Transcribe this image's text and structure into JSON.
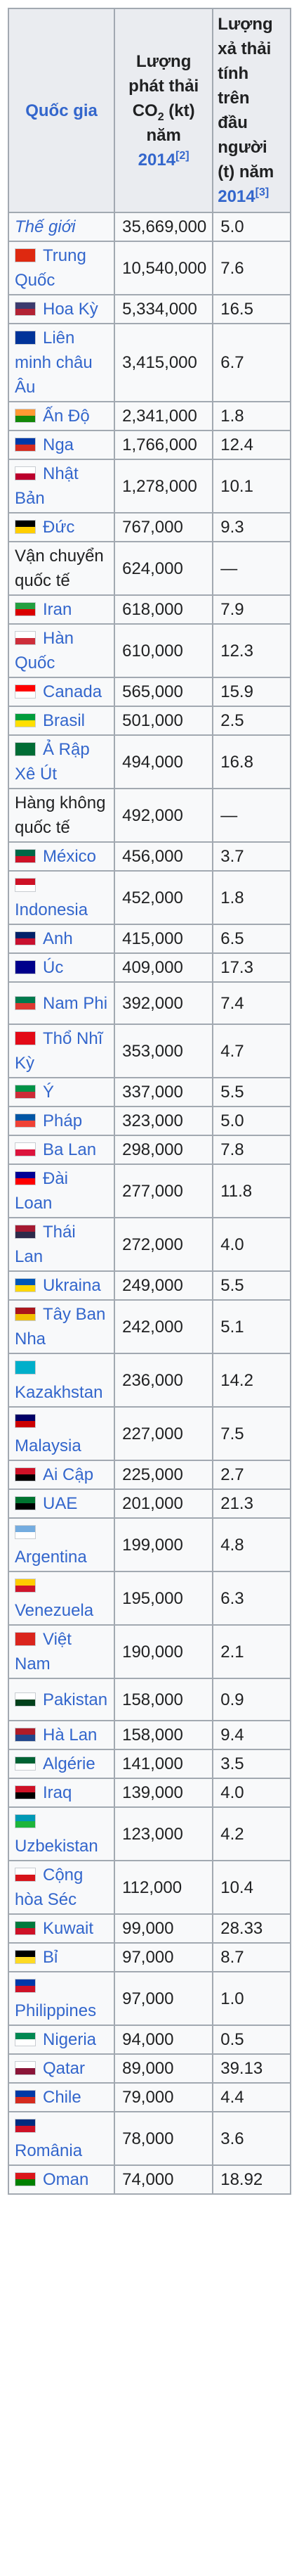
{
  "header": {
    "country": "Quốc gia",
    "total_line1": "Lượng",
    "total_line2": "phát thải",
    "total_co2": "CO",
    "total_co2_sub": "2",
    "total_unit": " (kt)",
    "total_line4": "năm",
    "total_year": "2014",
    "total_ref": "[2]",
    "percap_line1": "Lượng",
    "percap_line2": "xả thải",
    "percap_line3": "tính",
    "percap_line4": "trên",
    "percap_line5": "đầu",
    "percap_line6": "người",
    "percap_line7": "(t) năm",
    "percap_year": "2014",
    "percap_ref": "[3]"
  },
  "rows": [
    {
      "name": "Thế giới",
      "total": "35,669,000",
      "per": "5.0",
      "style": "italic-link",
      "flag": null
    },
    {
      "name": "Trung Quốc",
      "total": "10,540,000",
      "per": "7.6",
      "style": "link",
      "flag": "flag-china-icon",
      "colors": [
        "#de2910",
        "#de2910"
      ]
    },
    {
      "name": "Hoa Kỳ",
      "total": "5,334,000",
      "per": "16.5",
      "style": "link",
      "flag": "flag-usa-icon",
      "colors": [
        "#3c3b6e",
        "#b22234"
      ]
    },
    {
      "name": "Liên minh châu Âu",
      "total": "3,415,000",
      "per": "6.7",
      "style": "link",
      "flag": "flag-eu-icon",
      "colors": [
        "#003399",
        "#003399"
      ]
    },
    {
      "name": "Ấn Độ",
      "total": "2,341,000",
      "per": "1.8",
      "style": "link",
      "flag": "flag-india-icon",
      "colors": [
        "#ff9933",
        "#138808"
      ]
    },
    {
      "name": "Nga",
      "total": "1,766,000",
      "per": "12.4",
      "style": "link",
      "flag": "flag-russia-icon",
      "colors": [
        "#0039a6",
        "#d52b1e"
      ]
    },
    {
      "name": "Nhật Bản",
      "total": "1,278,000",
      "per": "10.1",
      "style": "link",
      "flag": "flag-japan-icon",
      "colors": [
        "#ffffff",
        "#bc002d"
      ]
    },
    {
      "name": "Đức",
      "total": "767,000",
      "per": "9.3",
      "style": "link",
      "flag": "flag-germany-icon",
      "colors": [
        "#000000",
        "#ffce00"
      ]
    },
    {
      "name": "Vận chuyển quốc tế",
      "total": "624,000",
      "per": "—",
      "style": "plain",
      "flag": null
    },
    {
      "name": "Iran",
      "total": "618,000",
      "per": "7.9",
      "style": "link",
      "flag": "flag-iran-icon",
      "colors": [
        "#239f40",
        "#da0000"
      ]
    },
    {
      "name": "Hàn Quốc",
      "total": "610,000",
      "per": "12.3",
      "style": "link",
      "flag": "flag-south-korea-icon",
      "colors": [
        "#ffffff",
        "#cd2e3a"
      ]
    },
    {
      "name": "Canada",
      "total": "565,000",
      "per": "15.9",
      "style": "link",
      "flag": "flag-canada-icon",
      "colors": [
        "#ff0000",
        "#ffffff"
      ]
    },
    {
      "name": "Brasil",
      "total": "501,000",
      "per": "2.5",
      "style": "link",
      "flag": "flag-brazil-icon",
      "colors": [
        "#009c3b",
        "#ffdf00"
      ]
    },
    {
      "name": "Ả Rập Xê Út",
      "total": "494,000",
      "per": "16.8",
      "style": "link",
      "flag": "flag-saudi-arabia-icon",
      "colors": [
        "#006c35",
        "#006c35"
      ]
    },
    {
      "name": "Hàng không quốc tế",
      "total": "492,000",
      "per": "—",
      "style": "plain",
      "flag": null
    },
    {
      "name": "México",
      "total": "456,000",
      "per": "3.7",
      "style": "link",
      "flag": "flag-mexico-icon",
      "colors": [
        "#006847",
        "#ce1126"
      ]
    },
    {
      "name": "Indonesia",
      "total": "452,000",
      "per": "1.8",
      "style": "link",
      "flag": "flag-indonesia-icon",
      "colors": [
        "#ce1126",
        "#ffffff"
      ]
    },
    {
      "name": "Anh",
      "total": "415,000",
      "per": "6.5",
      "style": "link",
      "flag": "flag-uk-icon",
      "colors": [
        "#012169",
        "#c8102e"
      ]
    },
    {
      "name": "Úc",
      "total": "409,000",
      "per": "17.3",
      "style": "link",
      "flag": "flag-australia-icon",
      "colors": [
        "#00008b",
        "#00008b"
      ]
    },
    {
      "name": "Nam Phi",
      "total": "392,000",
      "per": "7.4",
      "style": "link",
      "flag": "flag-south-africa-icon",
      "colors": [
        "#007a4d",
        "#de3831"
      ]
    },
    {
      "name": "Thổ Nhĩ Kỳ",
      "total": "353,000",
      "per": "4.7",
      "style": "link",
      "flag": "flag-turkey-icon",
      "colors": [
        "#e30a17",
        "#e30a17"
      ]
    },
    {
      "name": "Ý",
      "total": "337,000",
      "per": "5.5",
      "style": "link",
      "flag": "flag-italy-icon",
      "colors": [
        "#009246",
        "#ce2b37"
      ]
    },
    {
      "name": "Pháp",
      "total": "323,000",
      "per": "5.0",
      "style": "link",
      "flag": "flag-france-icon",
      "colors": [
        "#0055a4",
        "#ef4135"
      ]
    },
    {
      "name": "Ba Lan",
      "total": "298,000",
      "per": "7.8",
      "style": "link",
      "flag": "flag-poland-icon",
      "colors": [
        "#ffffff",
        "#dc143c"
      ]
    },
    {
      "name": "Đài Loan",
      "total": "277,000",
      "per": "11.8",
      "style": "link",
      "flag": "flag-taiwan-icon",
      "colors": [
        "#000095",
        "#fe0000"
      ]
    },
    {
      "name": "Thái Lan",
      "total": "272,000",
      "per": "4.0",
      "style": "link",
      "flag": "flag-thailand-icon",
      "colors": [
        "#a51931",
        "#2d2a4a"
      ]
    },
    {
      "name": "Ukraina",
      "total": "249,000",
      "per": "5.5",
      "style": "link",
      "flag": "flag-ukraine-icon",
      "colors": [
        "#0057b7",
        "#ffd700"
      ]
    },
    {
      "name": "Tây Ban Nha",
      "total": "242,000",
      "per": "5.1",
      "style": "link",
      "flag": "flag-spain-icon",
      "colors": [
        "#aa151b",
        "#f1bf00"
      ]
    },
    {
      "name": "Kazakhstan",
      "total": "236,000",
      "per": "14.2",
      "style": "link",
      "flag": "flag-kazakhstan-icon",
      "colors": [
        "#00afca",
        "#00afca"
      ]
    },
    {
      "name": "Malaysia",
      "total": "227,000",
      "per": "7.5",
      "style": "link",
      "flag": "flag-malaysia-icon",
      "colors": [
        "#010066",
        "#cc0001"
      ]
    },
    {
      "name": "Ai Cập",
      "total": "225,000",
      "per": "2.7",
      "style": "link",
      "flag": "flag-egypt-icon",
      "colors": [
        "#ce1126",
        "#000000"
      ]
    },
    {
      "name": "UAE",
      "total": "201,000",
      "per": "21.3",
      "style": "link",
      "flag": "flag-uae-icon",
      "colors": [
        "#00732f",
        "#000000"
      ]
    },
    {
      "name": "Argentina",
      "total": "199,000",
      "per": "4.8",
      "style": "link",
      "flag": "flag-argentina-icon",
      "colors": [
        "#74acdf",
        "#ffffff"
      ]
    },
    {
      "name": "Venezuela",
      "total": "195,000",
      "per": "6.3",
      "style": "link",
      "flag": "flag-venezuela-icon",
      "colors": [
        "#ffcc00",
        "#cf142b"
      ]
    },
    {
      "name": "Việt Nam",
      "total": "190,000",
      "per": "2.1",
      "style": "link",
      "flag": "flag-vietnam-icon",
      "colors": [
        "#da251d",
        "#da251d"
      ]
    },
    {
      "name": "Pakistan",
      "total": "158,000",
      "per": "0.9",
      "style": "link",
      "flag": "flag-pakistan-icon",
      "colors": [
        "#ffffff",
        "#01411c"
      ]
    },
    {
      "name": "Hà Lan",
      "total": "158,000",
      "per": "9.4",
      "style": "link",
      "flag": "flag-netherlands-icon",
      "colors": [
        "#ae1c28",
        "#21468b"
      ]
    },
    {
      "name": "Algérie",
      "total": "141,000",
      "per": "3.5",
      "style": "link",
      "flag": "flag-algeria-icon",
      "colors": [
        "#006233",
        "#ffffff"
      ]
    },
    {
      "name": "Iraq",
      "total": "139,000",
      "per": "4.0",
      "style": "link",
      "flag": "flag-iraq-icon",
      "colors": [
        "#ce1126",
        "#000000"
      ]
    },
    {
      "name": "Uzbekistan",
      "total": "123,000",
      "per": "4.2",
      "style": "link",
      "flag": "flag-uzbekistan-icon",
      "colors": [
        "#0099b5",
        "#1eb53a"
      ]
    },
    {
      "name": "Cộng hòa Séc",
      "total": "112,000",
      "per": "10.4",
      "style": "link",
      "flag": "flag-czech-icon",
      "colors": [
        "#ffffff",
        "#d7141a"
      ]
    },
    {
      "name": "Kuwait",
      "total": "99,000",
      "per": "28.33",
      "style": "link",
      "flag": "flag-kuwait-icon",
      "colors": [
        "#007a3d",
        "#ce1126"
      ]
    },
    {
      "name": "Bỉ",
      "total": "97,000",
      "per": "8.7",
      "style": "link",
      "flag": "flag-belgium-icon",
      "colors": [
        "#000000",
        "#fdda24"
      ]
    },
    {
      "name": "Philippines",
      "total": "97,000",
      "per": "1.0",
      "style": "link",
      "flag": "flag-philippines-icon",
      "colors": [
        "#0038a8",
        "#ce1126"
      ]
    },
    {
      "name": "Nigeria",
      "total": "94,000",
      "per": "0.5",
      "style": "link",
      "flag": "flag-nigeria-icon",
      "colors": [
        "#008751",
        "#ffffff"
      ]
    },
    {
      "name": "Qatar",
      "total": "89,000",
      "per": "39.13",
      "style": "link",
      "flag": "flag-qatar-icon",
      "colors": [
        "#ffffff",
        "#8a1538"
      ]
    },
    {
      "name": "Chile",
      "total": "79,000",
      "per": "4.4",
      "style": "link",
      "flag": "flag-chile-icon",
      "colors": [
        "#0039a6",
        "#d52b1e"
      ]
    },
    {
      "name": "România",
      "total": "78,000",
      "per": "3.6",
      "style": "link",
      "flag": "flag-romania-icon",
      "colors": [
        "#002b7f",
        "#ce1126"
      ]
    },
    {
      "name": "Oman",
      "total": "74,000",
      "per": "18.92",
      "style": "link",
      "flag": "flag-oman-icon",
      "colors": [
        "#db161b",
        "#008000"
      ]
    }
  ]
}
